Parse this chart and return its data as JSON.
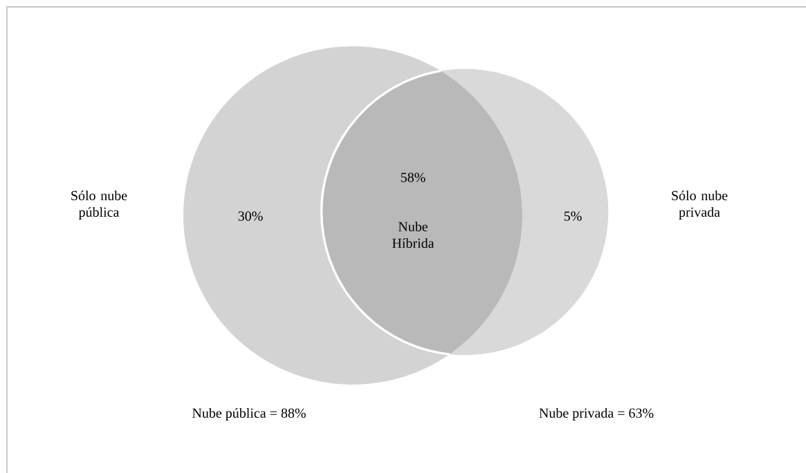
{
  "chart_data": {
    "type": "other",
    "categories": [
      "Sólo nube pública",
      "Nube Híbrida",
      "Sólo nube privada"
    ],
    "values": [
      30,
      58,
      5
    ],
    "value_labels": [
      "30%",
      "58%",
      "5%"
    ],
    "colors": [
      "#d3d3d3",
      "#b9b9b9",
      "#d9d9d9"
    ],
    "annotations": [
      "Nube pública = 88%",
      "Nube privada = 63%"
    ]
  }
}
